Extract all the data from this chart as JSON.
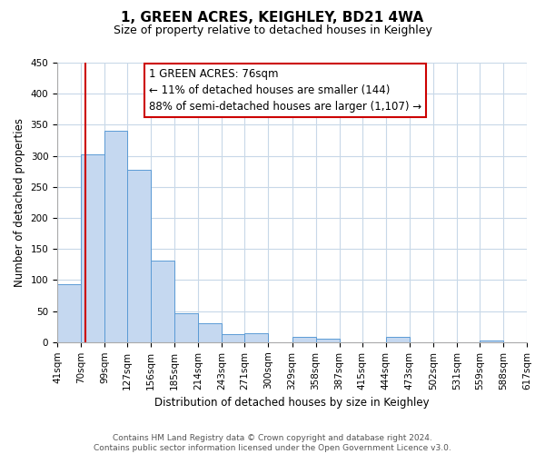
{
  "title": "1, GREEN ACRES, KEIGHLEY, BD21 4WA",
  "subtitle": "Size of property relative to detached houses in Keighley",
  "xlabel": "Distribution of detached houses by size in Keighley",
  "ylabel": "Number of detached properties",
  "bin_edges": [
    41,
    70,
    99,
    127,
    156,
    185,
    214,
    243,
    271,
    300,
    329,
    358,
    387,
    415,
    444,
    473,
    502,
    531,
    559,
    588,
    617
  ],
  "bar_heights": [
    93,
    303,
    340,
    278,
    131,
    47,
    31,
    13,
    14,
    0,
    9,
    5,
    0,
    0,
    8,
    0,
    0,
    0,
    2,
    0
  ],
  "bar_color": "#c5d8f0",
  "bar_edge_color": "#5b9bd5",
  "property_size": 76,
  "red_line_color": "#cc0000",
  "annotation_line1": "1 GREEN ACRES: 76sqm",
  "annotation_line2": "← 11% of detached houses are smaller (144)",
  "annotation_line3": "88% of semi-detached houses are larger (1,107) →",
  "annotation_box_color": "#cc0000",
  "ylim": [
    0,
    450
  ],
  "yticks": [
    0,
    50,
    100,
    150,
    200,
    250,
    300,
    350,
    400,
    450
  ],
  "footer_line1": "Contains HM Land Registry data © Crown copyright and database right 2024.",
  "footer_line2": "Contains public sector information licensed under the Open Government Licence v3.0.",
  "bg_color": "#ffffff",
  "grid_color": "#c8d8e8",
  "title_fontsize": 11,
  "subtitle_fontsize": 9,
  "annotation_fontsize": 8.5,
  "axis_label_fontsize": 8.5,
  "tick_fontsize": 7.5,
  "footer_fontsize": 6.5
}
